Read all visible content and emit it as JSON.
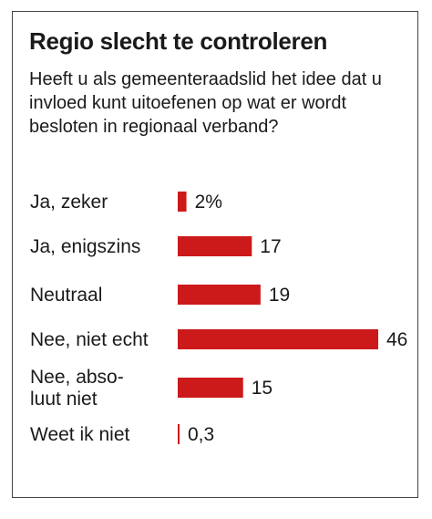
{
  "chart_data": {
    "type": "bar",
    "orientation": "horizontal",
    "title": "Regio slecht te controleren",
    "subtitle": "Heeft u als gemeenteraadslid het idee dat u invloed kunt uitoefenen op wat er wordt besloten in regionaal verband?",
    "categories": [
      "Ja, zeker",
      "Ja, enigszins",
      "Neutraal",
      "Nee, niet echt",
      "Nee, absoluut niet",
      "Weet ik niet"
    ],
    "category_lines": [
      [
        "Ja, zeker"
      ],
      [
        "Ja, enigszins"
      ],
      [
        "Neutraal"
      ],
      [
        "Nee, niet echt"
      ],
      [
        "Nee, abso-",
        "luut niet"
      ],
      [
        "Weet ik niet"
      ]
    ],
    "values": [
      2,
      17,
      19,
      46,
      15,
      0.3
    ],
    "value_labels": [
      "2%",
      "17",
      "19",
      "46",
      "15",
      "0,3"
    ],
    "unit": "%",
    "bar_color": "#cc1a1a",
    "xlim": [
      0,
      46
    ],
    "grid": false,
    "legend": "none"
  }
}
